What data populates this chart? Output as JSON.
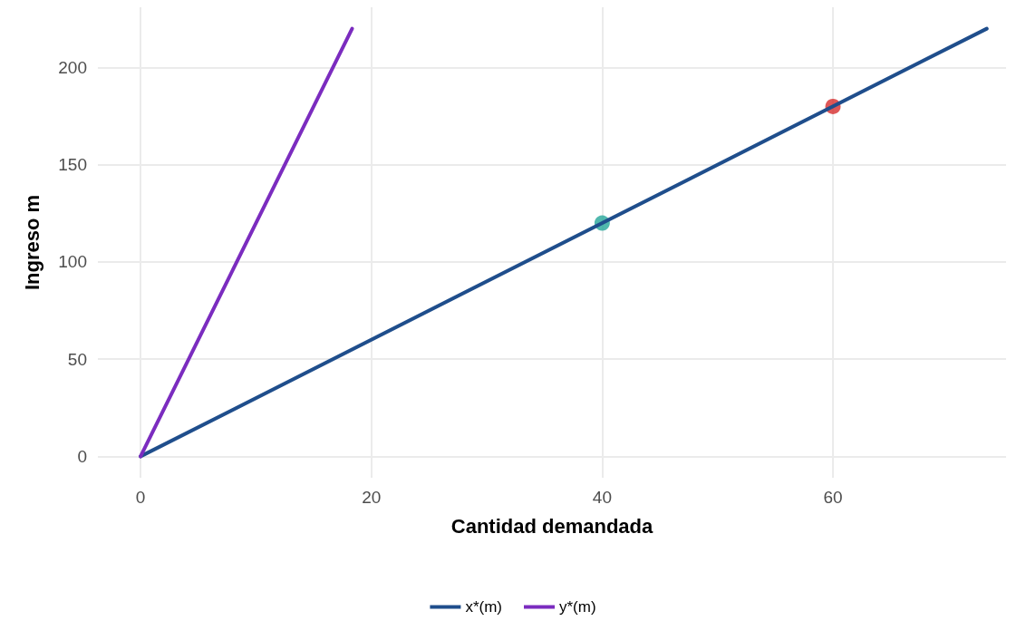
{
  "chart_data": {
    "type": "line",
    "xlabel": "Cantidad demandada",
    "ylabel": "Ingreso m",
    "xlim": [
      -3.7,
      75
    ],
    "ylim": [
      -11,
      231
    ],
    "xticks": [
      0,
      20,
      40,
      60
    ],
    "yticks": [
      0,
      50,
      100,
      150,
      200
    ],
    "grid": true,
    "legend": "bottom",
    "line_style": "solid",
    "series": [
      {
        "name": "x*(m)",
        "color": "#1f4e8c",
        "x": [
          0,
          73.33
        ],
        "values": [
          0,
          220
        ],
        "marker": "none"
      },
      {
        "name": "y*(m)",
        "color": "#7b2cbf",
        "x": [
          0,
          18.33
        ],
        "values": [
          0,
          220
        ],
        "marker": "none"
      },
      {
        "type": "scatter",
        "color": "#26a69a",
        "x": [
          40
        ],
        "values": [
          120
        ],
        "marker": "circle"
      },
      {
        "type": "scatter",
        "color": "#d62d2d",
        "x": [
          60
        ],
        "values": [
          180
        ],
        "marker": "circle"
      }
    ]
  }
}
